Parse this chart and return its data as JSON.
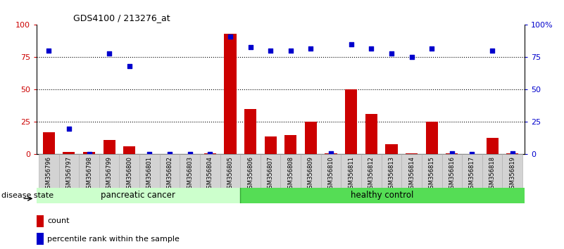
{
  "title": "GDS4100 / 213276_at",
  "samples": [
    "GSM356796",
    "GSM356797",
    "GSM356798",
    "GSM356799",
    "GSM356800",
    "GSM356801",
    "GSM356802",
    "GSM356803",
    "GSM356804",
    "GSM356805",
    "GSM356806",
    "GSM356807",
    "GSM356808",
    "GSM356809",
    "GSM356810",
    "GSM356811",
    "GSM356812",
    "GSM356813",
    "GSM356814",
    "GSM356815",
    "GSM356816",
    "GSM356817",
    "GSM356818",
    "GSM356819"
  ],
  "counts": [
    17,
    2,
    2,
    11,
    6,
    0,
    0,
    0,
    1,
    93,
    35,
    14,
    15,
    25,
    1,
    50,
    31,
    8,
    1,
    25,
    1,
    0,
    13,
    1
  ],
  "percentiles": [
    80,
    20,
    0,
    78,
    68,
    0,
    0,
    0,
    0,
    91,
    83,
    80,
    80,
    82,
    1,
    85,
    82,
    78,
    75,
    82,
    1,
    0,
    80,
    1
  ],
  "bar_color": "#cc0000",
  "dot_color": "#0000cc",
  "group1_label": "pancreatic cancer",
  "group1_count": 10,
  "group2_label": "healthy control",
  "group1_bg": "#ccffcc",
  "group2_bg": "#55dd55",
  "disease_state_label": "disease state",
  "legend_count": "count",
  "legend_percentile": "percentile rank within the sample",
  "ylim": [
    0,
    100
  ],
  "yticks": [
    0,
    25,
    50,
    75,
    100
  ],
  "ytick_right_labels": [
    "0",
    "25",
    "50",
    "75",
    "100%"
  ],
  "grid_ticks": [
    25,
    50,
    75
  ],
  "bar_color_left_axis": "#cc0000",
  "dot_color_right_axis": "#0000cc",
  "tick_bg_color": "#d3d3d3",
  "tick_bg_edge": "#aaaaaa"
}
